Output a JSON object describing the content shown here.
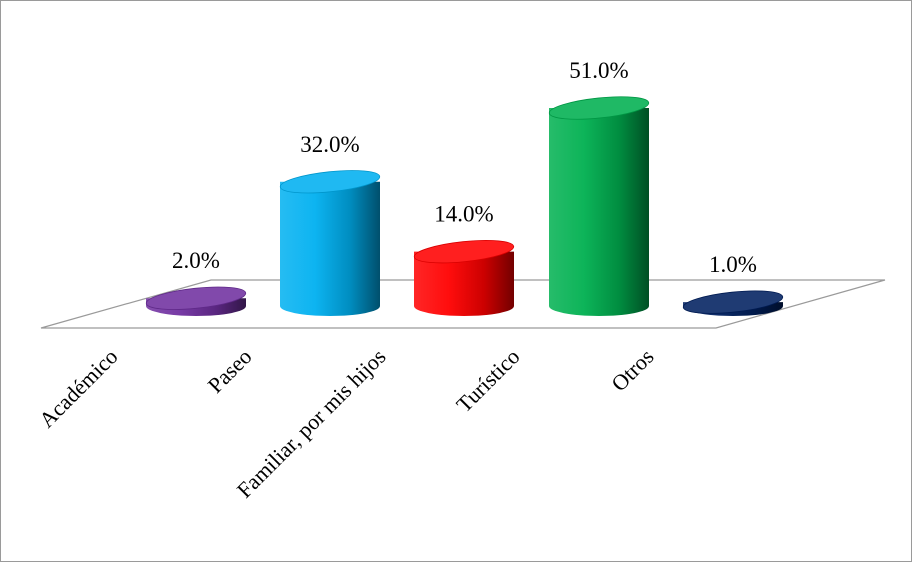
{
  "chart_data": {
    "type": "bar",
    "style": "3d-cylinder",
    "categories": [
      "Académico",
      "Paseo",
      "Familiar, por mis hijos",
      "Turístico",
      "Otros"
    ],
    "values": [
      2.0,
      32.0,
      14.0,
      51.0,
      1.0
    ],
    "value_labels": [
      "2.0%",
      "32.0%",
      "14.0%",
      "51.0%",
      "1.0%"
    ],
    "colors": [
      "#7030A0",
      "#00B0F0",
      "#FF0000",
      "#00B050",
      "#002060"
    ],
    "ylim": [
      0,
      51
    ],
    "grid": false,
    "legend": "none"
  }
}
